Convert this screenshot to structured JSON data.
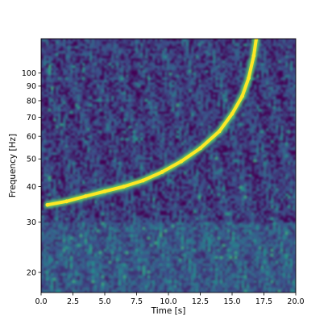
{
  "chart_data": {
    "type": "heatmap",
    "title": "",
    "xlabel": "Time [s]",
    "ylabel": "Frequency [Hz]",
    "xlim": [
      0.0,
      20.0
    ],
    "ylim": [
      17,
      132
    ],
    "y_scale": "log",
    "x_ticks": [
      {
        "value": 0.0,
        "label": "0.0"
      },
      {
        "value": 2.5,
        "label": "2.5"
      },
      {
        "value": 5.0,
        "label": "5.0"
      },
      {
        "value": 7.5,
        "label": "7.5"
      },
      {
        "value": 10.0,
        "label": "10.0"
      },
      {
        "value": 12.5,
        "label": "12.5"
      },
      {
        "value": 15.0,
        "label": "15.0"
      },
      {
        "value": 17.5,
        "label": "17.5"
      },
      {
        "value": 20.0,
        "label": "20.0"
      }
    ],
    "y_ticks": [
      {
        "value": 20,
        "label": "20"
      },
      {
        "value": 30,
        "label": "30"
      },
      {
        "value": 40,
        "label": "40"
      },
      {
        "value": 50,
        "label": "50"
      },
      {
        "value": 60,
        "label": "60"
      },
      {
        "value": 70,
        "label": "70"
      },
      {
        "value": 80,
        "label": "80"
      },
      {
        "value": 90,
        "label": "90"
      },
      {
        "value": 100,
        "label": "100"
      }
    ],
    "grid": false,
    "colormap": [
      "#440154",
      "#3b528b",
      "#21918c",
      "#5ec962",
      "#fde725"
    ],
    "chirp_track": {
      "time": [
        0.5,
        2.0,
        3.5,
        5.0,
        6.5,
        8.0,
        9.5,
        11.0,
        12.5,
        14.0,
        15.0,
        15.8,
        16.3,
        16.7,
        16.9
      ],
      "frequency": [
        34.5,
        35.5,
        37.0,
        38.5,
        40.0,
        42.0,
        45.0,
        49.0,
        54.5,
        62.5,
        72.0,
        83.0,
        96.0,
        115.0,
        132.0
      ]
    }
  }
}
